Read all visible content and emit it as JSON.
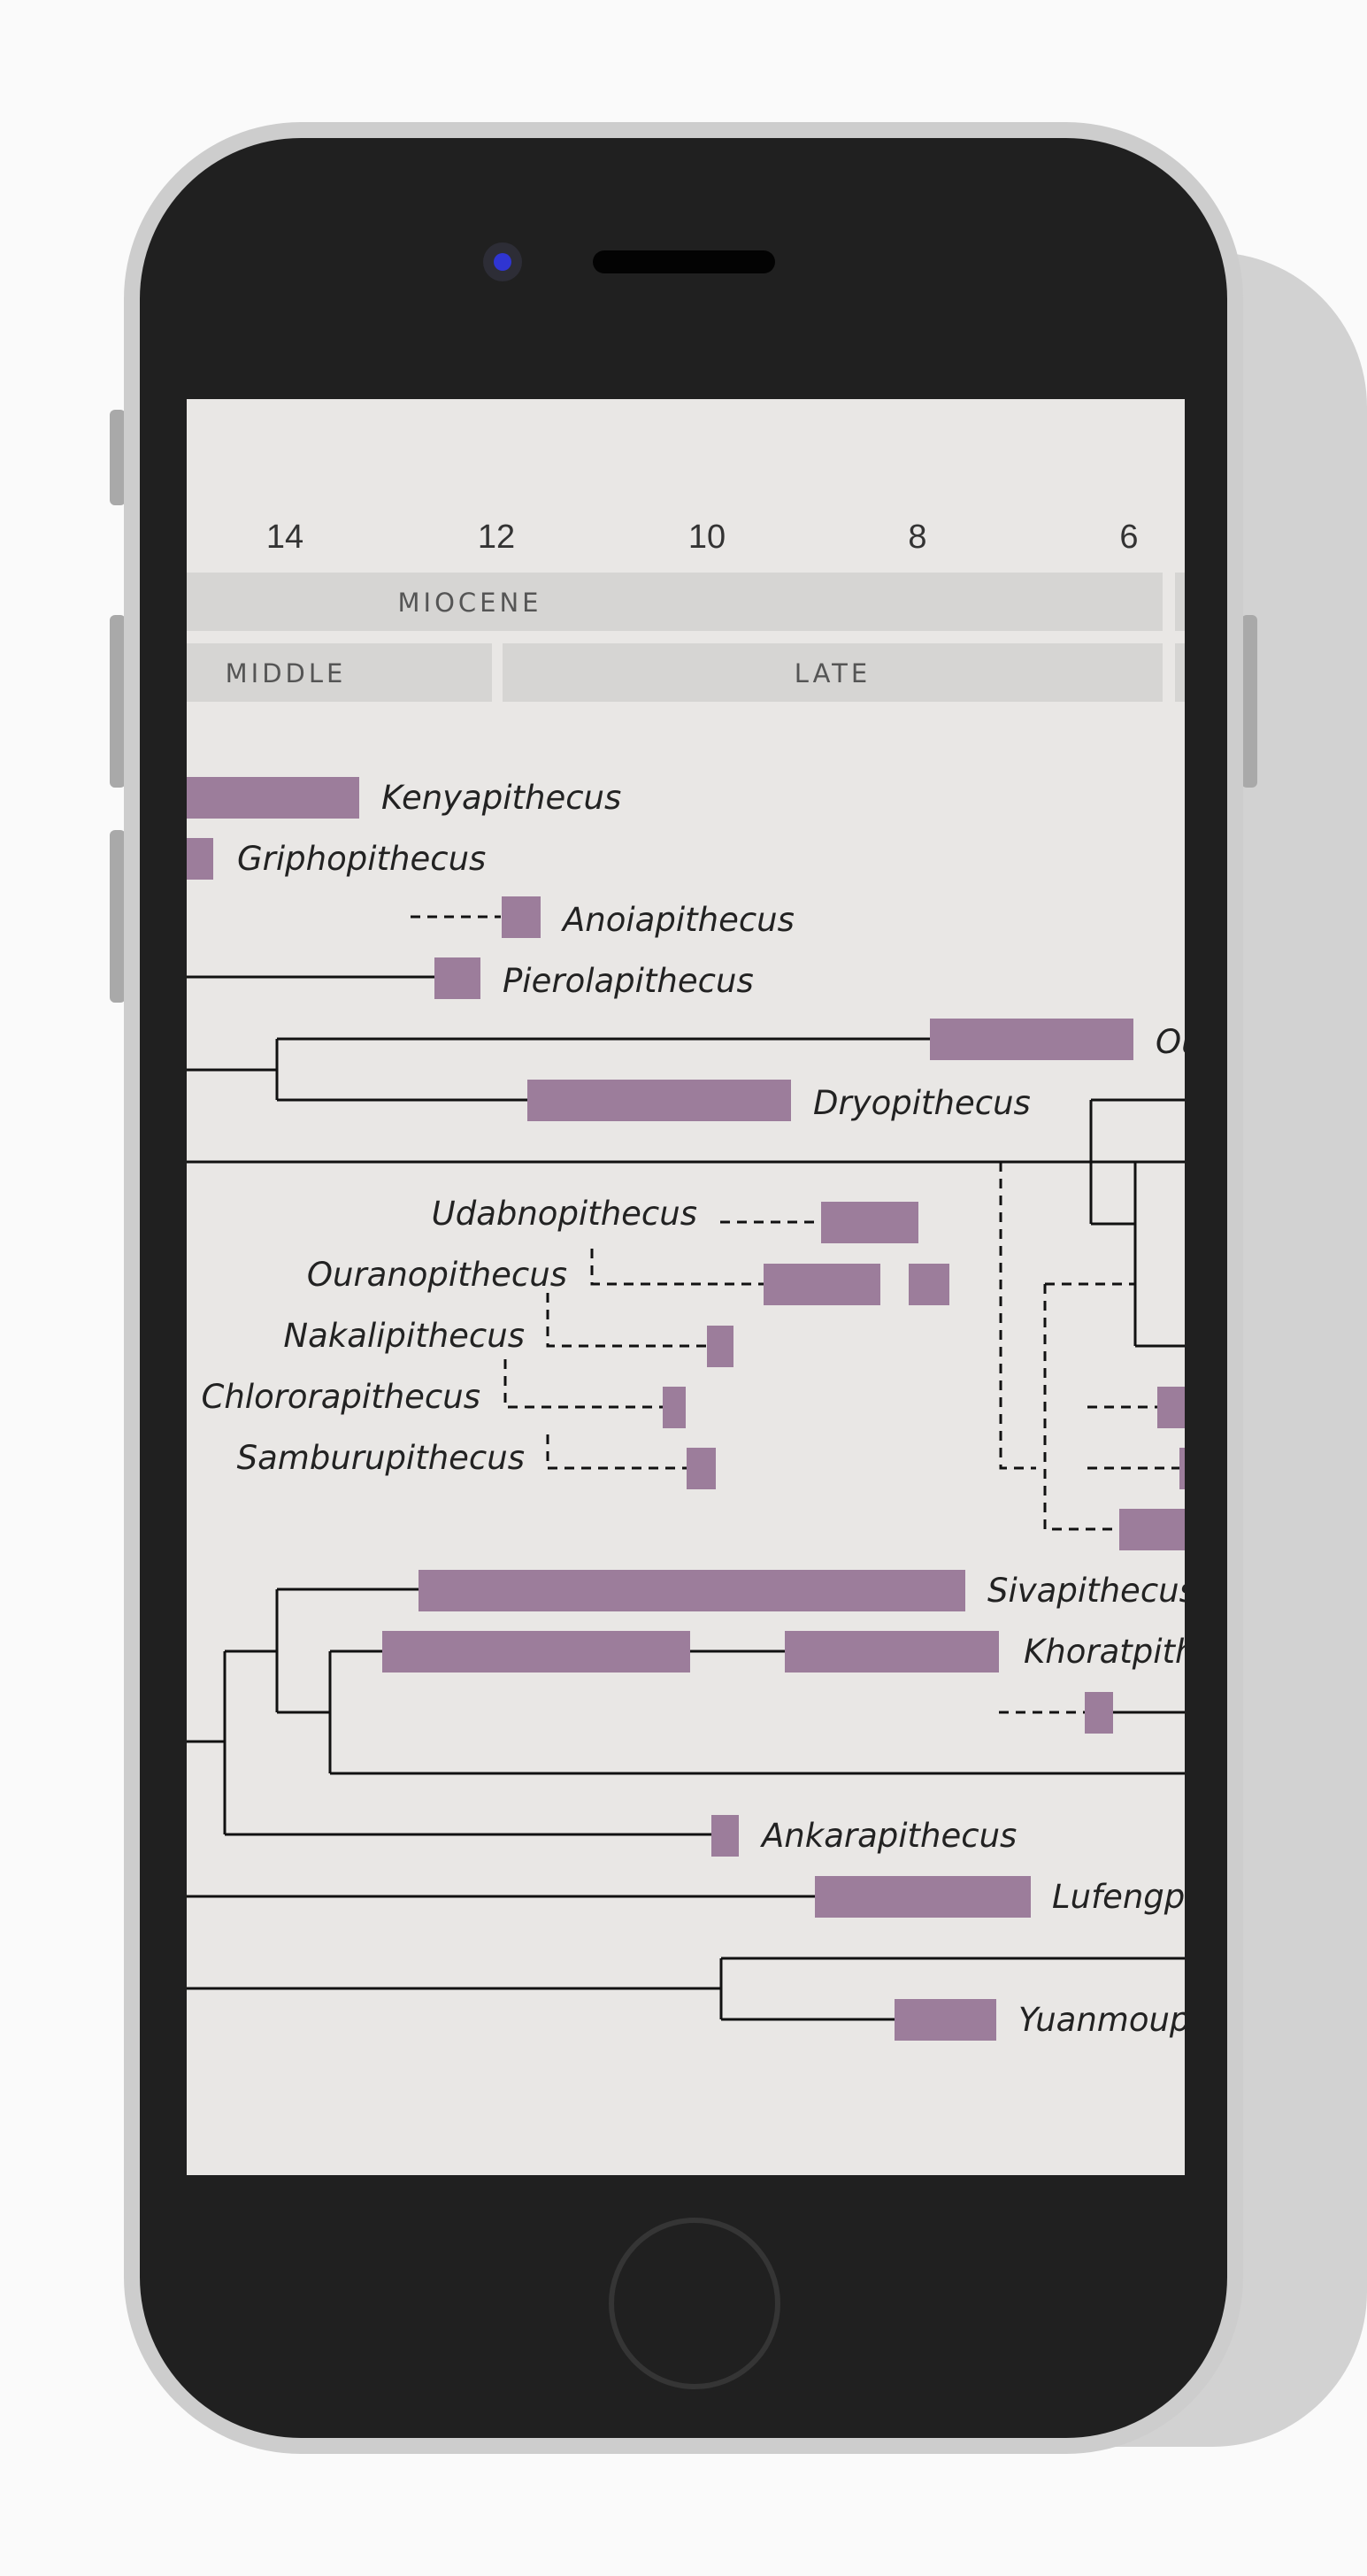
{
  "device": {
    "type": "smartphone",
    "screen_bg": "#e9e7e5",
    "frame_color": "#cdcdcd",
    "bezel_color": "#202020"
  },
  "chart": {
    "type": "phylogenetic-timeline",
    "axis_ticks": [
      "14",
      "12",
      "10",
      "8",
      "6"
    ],
    "epoch_label": "MIOCENE",
    "subepochs": [
      "MIDDLE",
      "LATE"
    ],
    "bar_color": "#9c7d9b",
    "taxa": [
      "Kenyapithecus",
      "Griphopithecus",
      "Anoiapithecus",
      "Pierolapithecus",
      "Ou",
      "Dryopithecus",
      "Udabnopithecus",
      "Ouranopithecus",
      "Nakalipithecus",
      "Chlororapithecus",
      "Samburupithecus",
      "Sivapithecus",
      "Khoratpith",
      "Ankarapithecus",
      "Lufengpit",
      "Yuanmoupi"
    ]
  }
}
